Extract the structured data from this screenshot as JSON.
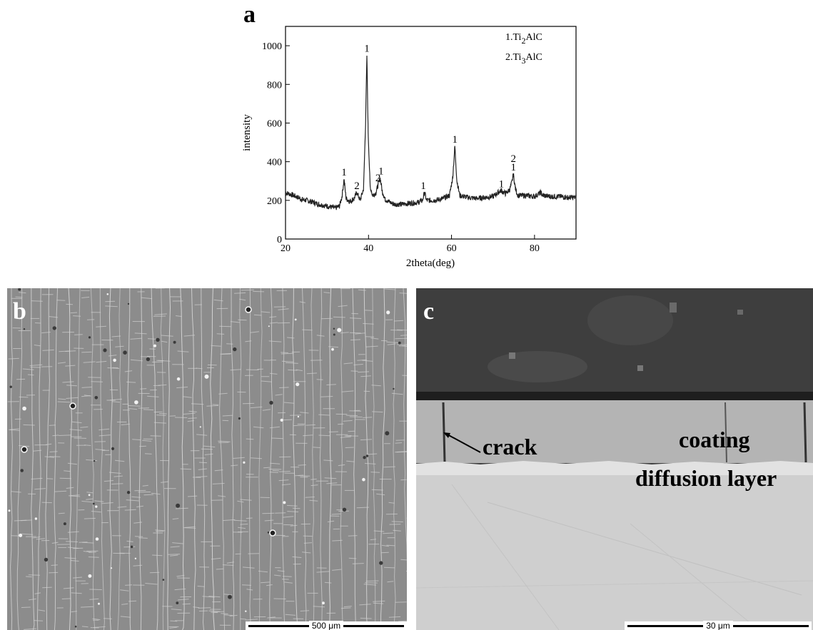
{
  "panels": {
    "a": {
      "label": "a"
    },
    "b": {
      "label": "b",
      "scale_bar": "500 μm"
    },
    "c": {
      "label": "c",
      "scale_bar": "30 μm",
      "annotations": {
        "crack": "crack",
        "coating": "coating",
        "diffusion_layer": "diffusion layer"
      }
    }
  },
  "chart_data": {
    "type": "line",
    "xlabel": "2theta(deg)",
    "ylabel": "intensity",
    "xlim": [
      20,
      90
    ],
    "ylim": [
      0,
      1100
    ],
    "x_ticks": [
      20,
      40,
      60,
      80
    ],
    "y_ticks": [
      0,
      200,
      400,
      600,
      800,
      1000
    ],
    "grid": false,
    "legend_position": "top-right",
    "legend": [
      "1.Ti2AlC",
      "2.Ti3AlC"
    ],
    "series": [
      {
        "x": [
          20,
          22,
          24,
          26,
          28,
          30,
          32,
          33,
          33.6,
          34.1,
          34.6,
          35.5,
          36.5,
          37.2,
          38,
          38.8,
          39.3,
          39.6,
          39.9,
          40.4,
          41,
          41.8,
          42.3,
          42.8,
          43.3,
          44,
          46,
          48,
          50,
          52,
          53,
          53.5,
          54,
          56,
          58,
          59.5,
          60.3,
          60.8,
          61.3,
          62,
          64,
          66,
          68,
          70,
          71.5,
          72,
          73,
          74,
          74.5,
          74.9,
          75.4,
          76,
          78,
          80,
          81.5,
          82,
          84,
          86,
          88,
          90
        ],
        "y": [
          240,
          225,
          205,
          195,
          180,
          170,
          160,
          170,
          220,
          310,
          210,
          195,
          210,
          240,
          200,
          260,
          600,
          950,
          560,
          270,
          225,
          240,
          280,
          315,
          250,
          205,
          180,
          180,
          185,
          190,
          200,
          240,
          200,
          200,
          210,
          225,
          320,
          480,
          300,
          225,
          215,
          210,
          215,
          220,
          245,
          250,
          235,
          255,
          290,
          335,
          260,
          225,
          225,
          220,
          240,
          225,
          220,
          220,
          215,
          215
        ]
      }
    ],
    "peak_labels": [
      {
        "x": 34.1,
        "y": 310,
        "text": "1"
      },
      {
        "x": 37.2,
        "y": 240,
        "text": "2"
      },
      {
        "x": 39.6,
        "y": 950,
        "text": "1"
      },
      {
        "x": 42.3,
        "y": 280,
        "text": "2"
      },
      {
        "x": 43.0,
        "y": 315,
        "text": "1"
      },
      {
        "x": 53.2,
        "y": 240,
        "text": "1"
      },
      {
        "x": 60.8,
        "y": 480,
        "text": "1"
      },
      {
        "x": 72.0,
        "y": 250,
        "text": "1"
      },
      {
        "x": 74.9,
        "y": 335,
        "text": "1"
      },
      {
        "x": 74.9,
        "y": 380,
        "text": "2"
      }
    ]
  }
}
